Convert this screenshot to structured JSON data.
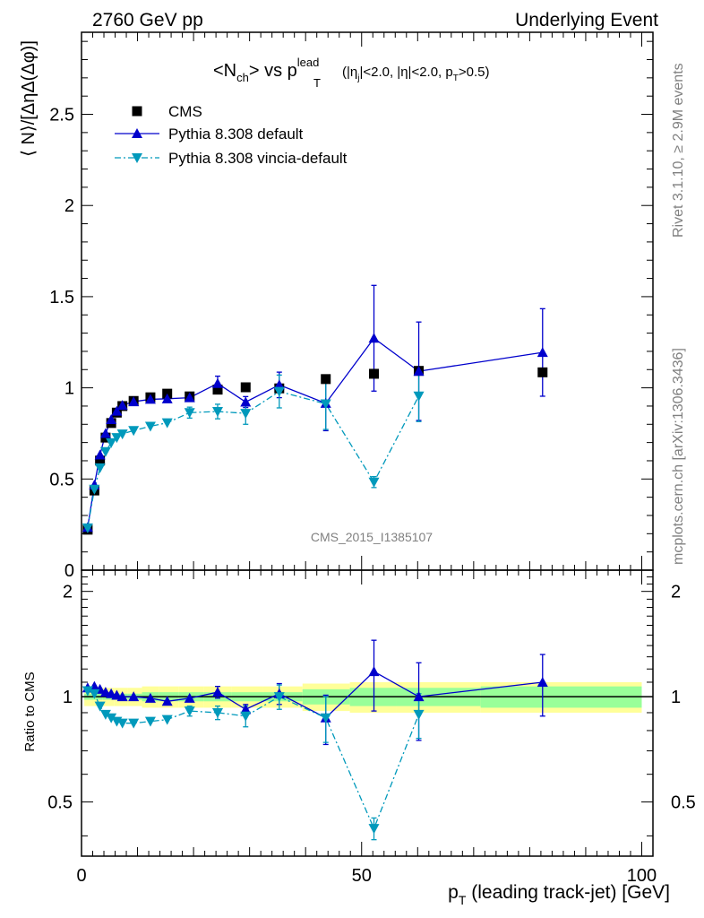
{
  "header": {
    "left": "2760 GeV pp",
    "right": "Underlying Event"
  },
  "side": {
    "rivet": "Rivet 3.1.10, ≥ 2.9M events",
    "mcplots": "mcplots.cern.ch [arXiv:1306.3436]"
  },
  "plot_title": {
    "main": "<N",
    "sub_ch": "ch",
    "vs": "> vs p",
    "sup_lead": "lead",
    "sub_t": "T",
    "cuts": "(|η",
    "cuts_sub_j": "j",
    "cuts_rest1": "|<2.0, |η|<2.0, p",
    "cuts_sub_t": "T",
    "cuts_rest2": ">0.5)"
  },
  "analysis_id": "CMS_2015_I1385107",
  "chart_data": {
    "type": "scatter",
    "main": {
      "ylabel": "⟨ N⟩/[ΔηΔ(Δφ)]",
      "ylim": [
        0,
        2.95
      ],
      "yticks": [
        "0",
        "0.5",
        "1",
        "1.5",
        "2",
        "2.5"
      ],
      "ytick_values": [
        0,
        0.5,
        1,
        1.5,
        2,
        2.5
      ]
    },
    "ratio": {
      "ylabel": "Ratio to CMS",
      "ylim": [
        0.35,
        2.3
      ],
      "yticks": [
        "0.5",
        "1",
        "2"
      ],
      "ytick_values": [
        0.5,
        1,
        2
      ]
    },
    "xlim": [
      0,
      102
    ],
    "xticks": [
      "0",
      "50",
      "100"
    ],
    "xtick_values": [
      0,
      50,
      100
    ],
    "xlabel_main": "p",
    "xlabel_sub": "T",
    "xlabel_rest": " (leading track-jet) [GeV]",
    "legend_placement": "top-left",
    "series": [
      {
        "name": "CMS",
        "color": "#000000",
        "marker": "square",
        "x": [
          1.1,
          2.3,
          3.3,
          4.3,
          5.3,
          6.3,
          7.3,
          9.3,
          12.3,
          15.3,
          19.3,
          24.3,
          29.3,
          35.3,
          43.6,
          52.2,
          60.2,
          82.3
        ],
        "y": [
          0.222,
          0.437,
          0.601,
          0.727,
          0.807,
          0.864,
          0.9,
          0.928,
          0.948,
          0.968,
          0.953,
          0.99,
          1.003,
          0.997,
          1.048,
          1.077,
          1.093,
          1.085
        ],
        "band_stat": [
          0.02,
          0.02,
          0.02,
          0.02,
          0.02,
          0.02,
          0.02,
          0.02,
          0.03,
          0.03,
          0.03,
          0.03,
          0.03,
          0.03,
          0.05,
          0.06,
          0.06,
          0.07
        ],
        "band_total": [
          0.06,
          0.06,
          0.06,
          0.06,
          0.06,
          0.06,
          0.06,
          0.06,
          0.07,
          0.07,
          0.07,
          0.07,
          0.07,
          0.07,
          0.09,
          0.1,
          0.1,
          0.1
        ]
      },
      {
        "name": "Pythia 8.308 default",
        "color": "#0000cc",
        "marker": "triangle-up",
        "line": "solid",
        "x": [
          1.1,
          2.3,
          3.3,
          4.3,
          5.3,
          6.3,
          7.3,
          9.3,
          12.3,
          15.3,
          19.3,
          24.3,
          29.3,
          35.3,
          43.6,
          52.2,
          60.2,
          82.3
        ],
        "y": [
          0.235,
          0.467,
          0.632,
          0.75,
          0.826,
          0.872,
          0.904,
          0.924,
          0.937,
          0.94,
          0.946,
          1.024,
          0.922,
          1.016,
          0.915,
          1.272,
          1.091,
          1.194
        ],
        "yerr": [
          0,
          0,
          0,
          0,
          0,
          0,
          0,
          0,
          0,
          0,
          0,
          0.04,
          0.03,
          0.07,
          0.15,
          0.29,
          0.27,
          0.24
        ],
        "ratio": [
          1.06,
          1.07,
          1.05,
          1.03,
          1.02,
          1.01,
          1.0,
          1.0,
          0.99,
          0.97,
          0.99,
          1.03,
          0.92,
          1.02,
          0.87,
          1.18,
          1.0,
          1.1
        ],
        "ratio_err": [
          0,
          0,
          0,
          0,
          0,
          0,
          0,
          0,
          0,
          0,
          0,
          0.04,
          0.03,
          0.07,
          0.14,
          0.27,
          0.25,
          0.22
        ]
      },
      {
        "name": "Pythia 8.308 vincia-default",
        "color": "#0099bb",
        "marker": "triangle-down",
        "line": "dash-dot",
        "x": [
          1.1,
          2.3,
          3.3,
          4.3,
          5.3,
          6.3,
          7.3,
          9.3,
          12.3,
          15.3,
          19.3,
          24.3,
          29.3,
          35.3,
          43.6,
          52.2,
          60.2
        ],
        "y": [
          0.232,
          0.444,
          0.561,
          0.65,
          0.699,
          0.727,
          0.747,
          0.766,
          0.789,
          0.808,
          0.864,
          0.87,
          0.86,
          0.98,
          0.912,
          0.483,
          0.955
        ],
        "yerr": [
          0,
          0,
          0,
          0,
          0,
          0,
          0,
          0,
          0,
          0,
          0.03,
          0.04,
          0.06,
          0.09,
          0.14,
          0.03,
          0.14
        ],
        "ratio": [
          1.04,
          1.02,
          0.94,
          0.89,
          0.87,
          0.85,
          0.84,
          0.84,
          0.85,
          0.86,
          0.91,
          0.9,
          0.88,
          1.0,
          0.87,
          0.42,
          0.89
        ],
        "ratio_err": [
          0,
          0,
          0,
          0,
          0,
          0,
          0,
          0,
          0,
          0,
          0.03,
          0.04,
          0.06,
          0.08,
          0.13,
          0.03,
          0.13
        ]
      }
    ]
  }
}
